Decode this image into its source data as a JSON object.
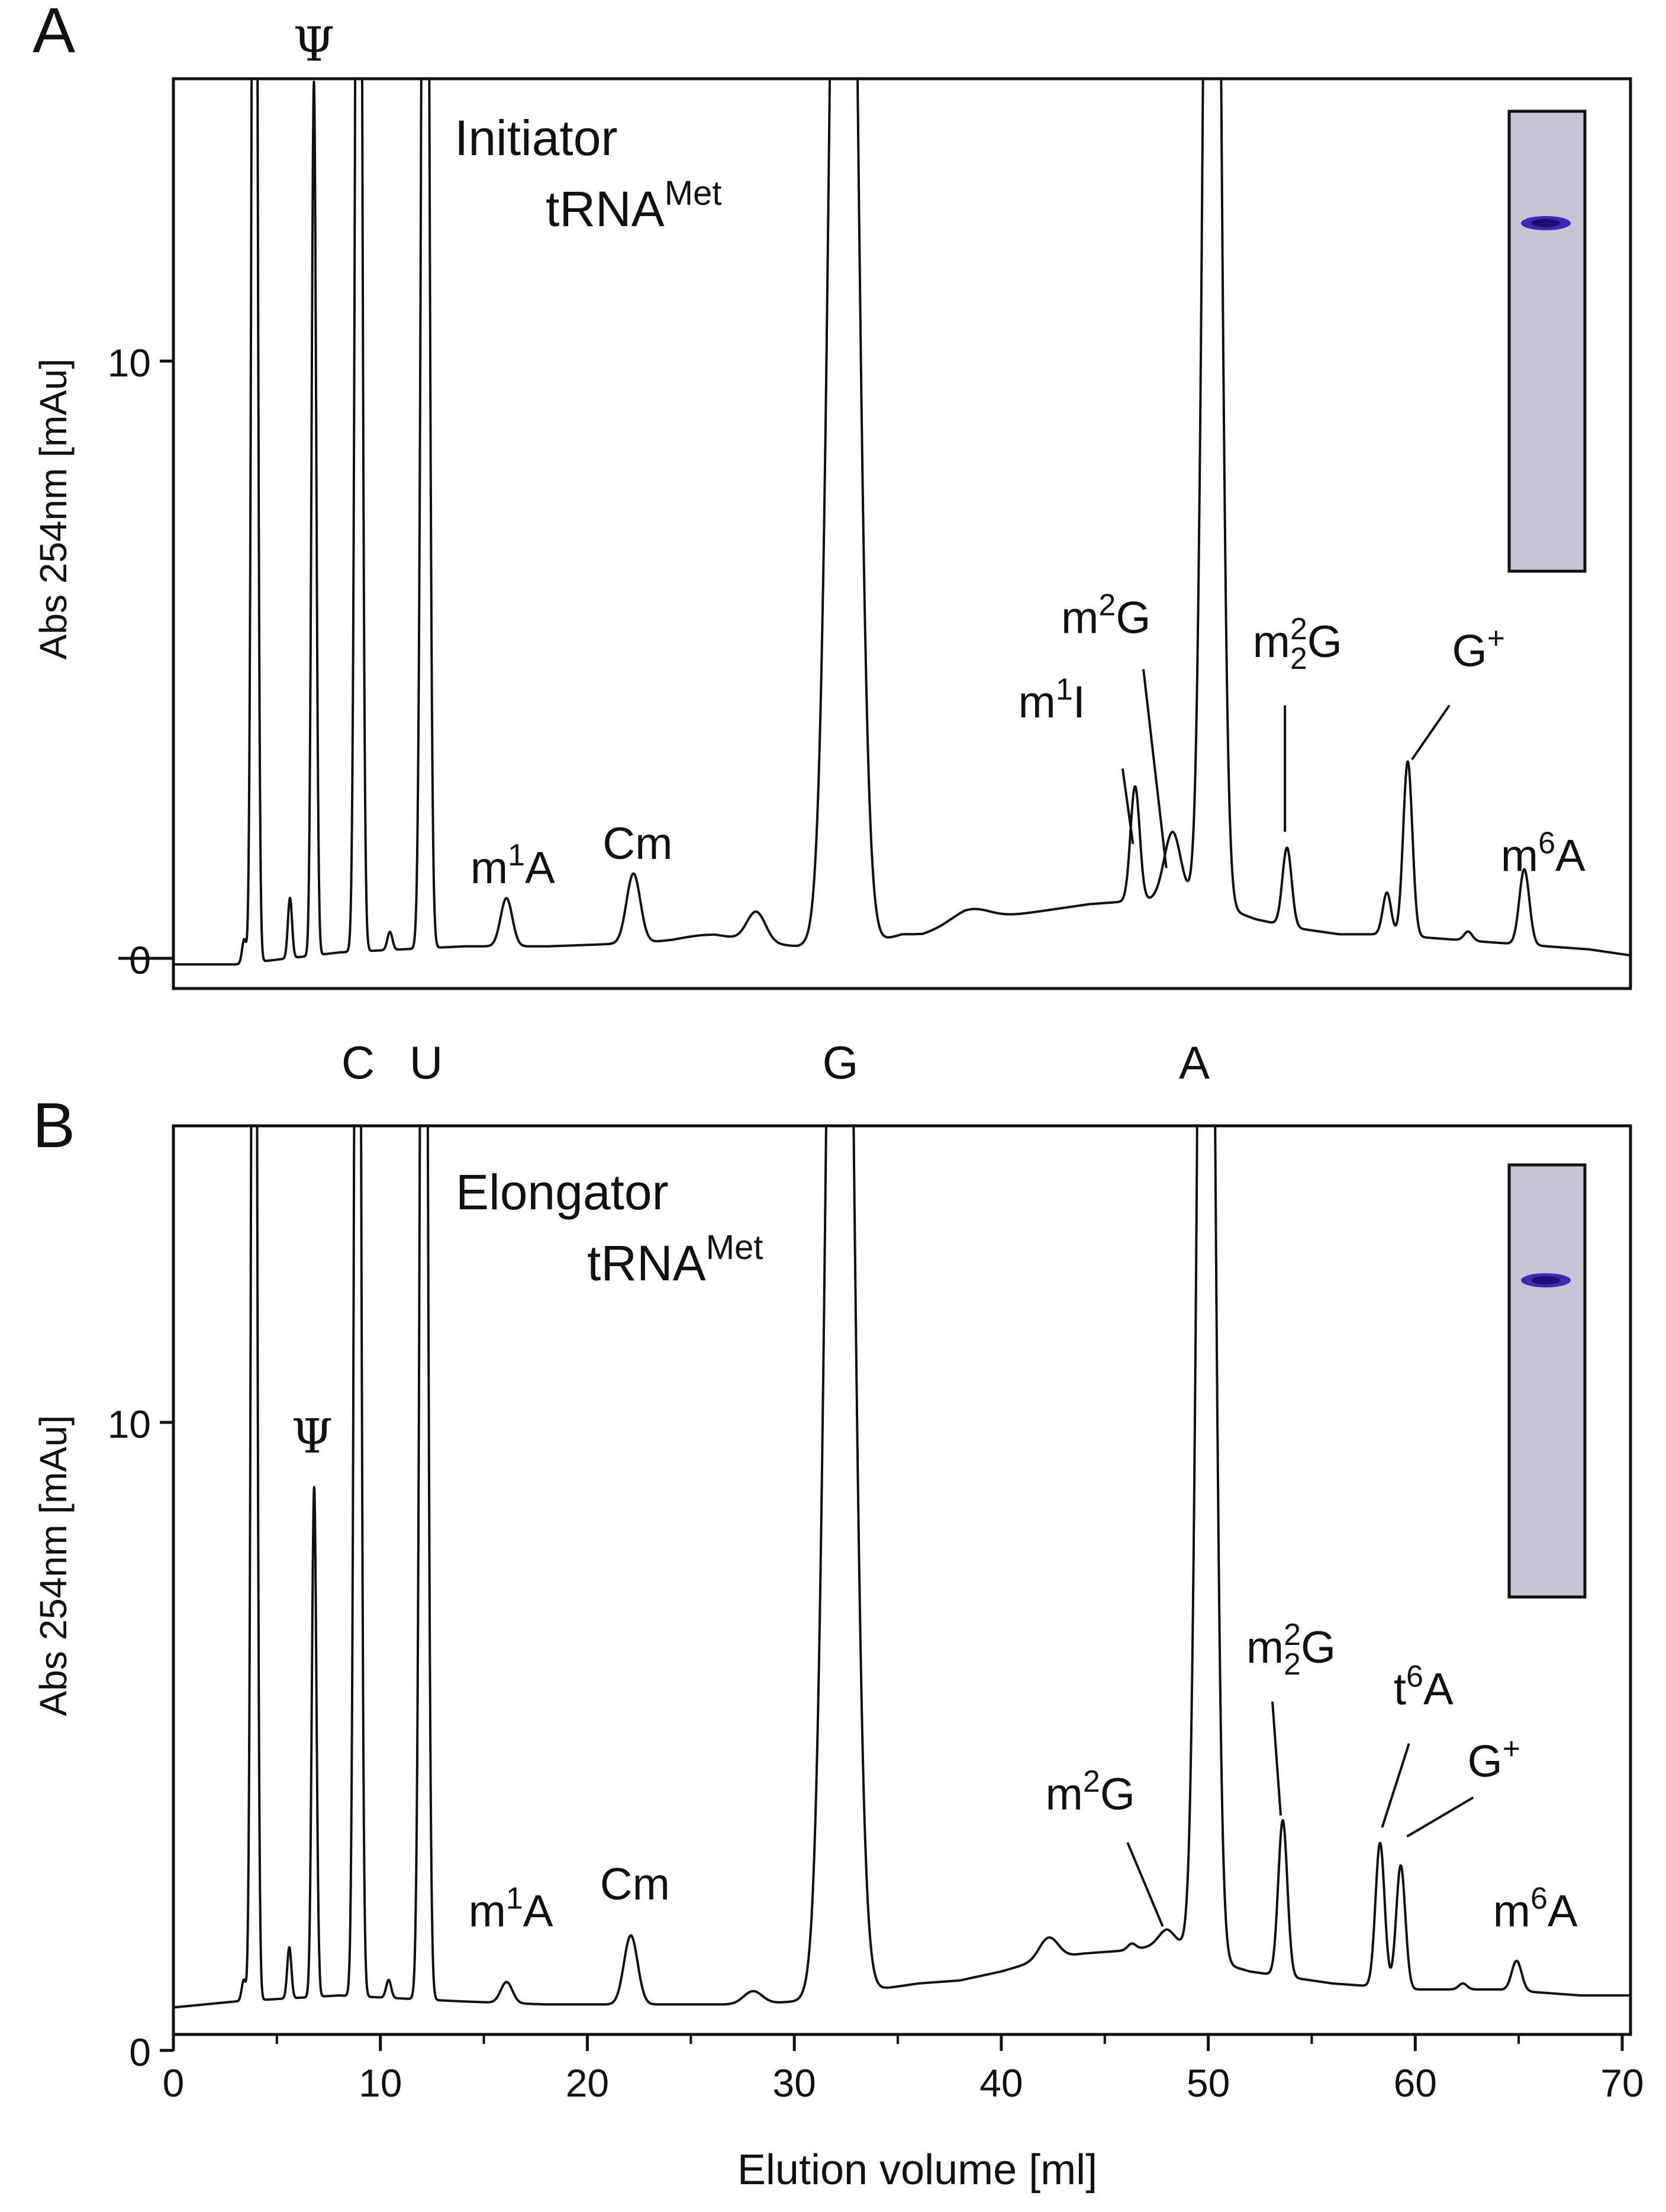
{
  "figure": {
    "x_axis_label": "Elution volume [ml]",
    "x_ticks": [
      "0",
      "10",
      "20",
      "30",
      "40",
      "50",
      "60",
      "70"
    ],
    "under_axis_labels": [
      "C",
      "U",
      "G",
      "A"
    ]
  },
  "chart_data": [
    {
      "type": "line",
      "panel_label": "A",
      "title_line1": "Initiator",
      "title_line2_base": "tRNA",
      "title_line2_sup": "Met",
      "ylabel": "Abs 254nm [mAu]",
      "y_ticks": [
        "0",
        "10"
      ],
      "xlim": [
        0,
        70
      ],
      "ylim": [
        -0.4,
        14.7
      ],
      "baseline": {
        "x": [
          0,
          3,
          8,
          14,
          18,
          22,
          24,
          26,
          28,
          30,
          34,
          35,
          36,
          38,
          40,
          42,
          44,
          46,
          48,
          50,
          52,
          54,
          56,
          58,
          60,
          62,
          64,
          66,
          68,
          70
        ],
        "y": [
          0.0,
          0.0,
          0.2,
          0.3,
          0.3,
          0.35,
          0.35,
          0.4,
          0.35,
          0.3,
          0.4,
          0.5,
          0.5,
          0.7,
          0.8,
          0.9,
          1.0,
          1.05,
          1.1,
          1.0,
          0.75,
          0.6,
          0.5,
          0.5,
          0.45,
          0.4,
          0.35,
          0.3,
          0.25,
          0.15
        ]
      },
      "peaks": [
        {
          "x": 3.4,
          "h": 0.4,
          "w": 0.1
        },
        {
          "x": 3.9,
          "h": 30,
          "w": 0.12
        },
        {
          "x": 5.6,
          "h": 1.0,
          "w": 0.1
        },
        {
          "x": 6.75,
          "h": 14.5,
          "w": 0.11
        },
        {
          "x": 8.9,
          "h": 30,
          "w": 0.14
        },
        {
          "x": 10.4,
          "h": 0.3,
          "w": 0.12
        },
        {
          "x": 12.1,
          "h": 30,
          "w": 0.16
        },
        {
          "x": 16.0,
          "h": 0.8,
          "w": 0.28
        },
        {
          "x": 22.1,
          "h": 1.15,
          "w": 0.33
        },
        {
          "x": 25.5,
          "h": 0.1,
          "w": 1.5
        },
        {
          "x": 28.0,
          "h": 0.5,
          "w": 0.45
        },
        {
          "x": 32.2,
          "h": 30,
          "w": 0.55
        },
        {
          "x": 38.3,
          "h": 0.2,
          "w": 0.9
        },
        {
          "x": 46.2,
          "h": 1.9,
          "w": 0.22
        },
        {
          "x": 48.0,
          "h": 1.1,
          "w": 0.4
        },
        {
          "x": 49.9,
          "h": 30,
          "w": 0.35
        },
        {
          "x": 53.5,
          "h": 1.3,
          "w": 0.22
        },
        {
          "x": 58.3,
          "h": 0.7,
          "w": 0.2
        },
        {
          "x": 59.3,
          "h": 2.9,
          "w": 0.22
        },
        {
          "x": 62.2,
          "h": 0.15,
          "w": 0.2
        },
        {
          "x": 64.9,
          "h": 1.25,
          "w": 0.24
        }
      ],
      "annotations": [
        {
          "kind": "serif",
          "text": "Ψ",
          "x": 6.75,
          "y": 15.0
        },
        {
          "kind": "sup",
          "pre": "m",
          "sup": "1",
          "post": "A",
          "x": 16.3,
          "y": 1.35
        },
        {
          "kind": "plain",
          "text": "Cm",
          "x": 22.3,
          "y": 1.75
        },
        {
          "kind": "sup",
          "pre": "m",
          "sup": "1",
          "post": "I",
          "x": 42.2,
          "y": 4.1
        },
        {
          "kind": "sup",
          "pre": "m",
          "sup": "2",
          "post": "G",
          "x": 44.8,
          "y": 5.5
        },
        {
          "kind": "subsup",
          "pre": "m",
          "sup": "2",
          "sub": "2",
          "post": "G",
          "x": 54.0,
          "y": 5.1
        },
        {
          "kind": "sup",
          "pre": "G",
          "sup": "+",
          "post": "",
          "x": 62.7,
          "y": 4.95
        },
        {
          "kind": "sup",
          "pre": "m",
          "sup": "6",
          "post": "A",
          "x": 65.8,
          "y": 1.55
        }
      ],
      "leader_lines": [
        {
          "x1": 45.6,
          "y1": 3.25,
          "x2": 46.1,
          "y2": 2.0
        },
        {
          "x1": 46.6,
          "y1": 4.9,
          "x2": 47.7,
          "y2": 1.6
        },
        {
          "x1": 53.4,
          "y1": 4.3,
          "x2": 53.4,
          "y2": 2.2
        },
        {
          "x1": 61.3,
          "y1": 4.3,
          "x2": 59.5,
          "y2": 3.4
        }
      ]
    },
    {
      "type": "line",
      "panel_label": "B",
      "title_line1": "Elongator",
      "title_line2_base": "tRNA",
      "title_line2_sup": "Met",
      "ylabel": "Abs 254nm [mAu]",
      "y_ticks": [
        "0",
        "10"
      ],
      "xlim": [
        0,
        70.4
      ],
      "ylim": [
        -0.35,
        14.8
      ],
      "baseline": {
        "x": [
          0,
          3,
          8,
          14,
          18,
          22,
          26,
          28,
          30,
          34,
          36,
          38,
          40,
          42,
          44,
          46,
          47,
          48,
          49,
          50,
          52,
          54,
          56,
          58,
          60,
          62,
          64,
          66,
          68,
          70
        ],
        "y": [
          0.1,
          0.2,
          0.3,
          0.2,
          0.15,
          0.15,
          0.15,
          0.15,
          0.2,
          0.4,
          0.5,
          0.55,
          0.7,
          0.9,
          1.0,
          1.05,
          1.1,
          1.15,
          1.1,
          0.9,
          0.7,
          0.6,
          0.5,
          0.45,
          0.4,
          0.4,
          0.4,
          0.35,
          0.3,
          0.3
        ]
      },
      "peaks": [
        {
          "x": 3.4,
          "h": 0.35,
          "w": 0.1
        },
        {
          "x": 3.9,
          "h": 30,
          "w": 0.12
        },
        {
          "x": 5.6,
          "h": 0.85,
          "w": 0.1
        },
        {
          "x": 6.8,
          "h": 8.5,
          "w": 0.11
        },
        {
          "x": 8.9,
          "h": 30,
          "w": 0.14
        },
        {
          "x": 10.4,
          "h": 0.3,
          "w": 0.12
        },
        {
          "x": 12.1,
          "h": 30,
          "w": 0.16
        },
        {
          "x": 16.1,
          "h": 0.35,
          "w": 0.28
        },
        {
          "x": 22.1,
          "h": 1.15,
          "w": 0.33
        },
        {
          "x": 28.0,
          "h": 0.22,
          "w": 0.45
        },
        {
          "x": 32.2,
          "h": 30,
          "w": 0.55
        },
        {
          "x": 42.3,
          "h": 0.35,
          "w": 0.45
        },
        {
          "x": 46.3,
          "h": 0.1,
          "w": 0.2
        },
        {
          "x": 48.0,
          "h": 0.25,
          "w": 0.4
        },
        {
          "x": 49.9,
          "h": 30,
          "w": 0.35
        },
        {
          "x": 53.6,
          "h": 2.6,
          "w": 0.22
        },
        {
          "x": 58.3,
          "h": 2.4,
          "w": 0.22
        },
        {
          "x": 59.3,
          "h": 2.05,
          "w": 0.22
        },
        {
          "x": 62.3,
          "h": 0.1,
          "w": 0.2
        },
        {
          "x": 64.9,
          "h": 0.5,
          "w": 0.24
        }
      ],
      "annotations": [
        {
          "kind": "serif",
          "text": "Ψ",
          "x": 6.7,
          "y": 9.35
        },
        {
          "kind": "sup",
          "pre": "m",
          "sup": "1",
          "post": "A",
          "x": 16.3,
          "y": 1.45
        },
        {
          "kind": "plain",
          "text": "Cm",
          "x": 22.3,
          "y": 1.9
        },
        {
          "kind": "sup",
          "pre": "m",
          "sup": "2",
          "post": "G",
          "x": 44.3,
          "y": 3.4
        },
        {
          "kind": "subsup",
          "pre": "m",
          "sup": "2",
          "sub": "2",
          "post": "G",
          "x": 54.0,
          "y": 5.85
        },
        {
          "kind": "sup",
          "pre": "t",
          "sup": "6",
          "post": "A",
          "x": 60.4,
          "y": 5.15
        },
        {
          "kind": "sup",
          "pre": "G",
          "sup": "+",
          "post": "",
          "x": 63.8,
          "y": 3.95
        },
        {
          "kind": "sup",
          "pre": "m",
          "sup": "6",
          "post": "A",
          "x": 65.8,
          "y": 1.45
        }
      ],
      "leader_lines": [
        {
          "x1": 46.1,
          "y1": 2.85,
          "x2": 47.8,
          "y2": 1.45
        },
        {
          "x1": 53.1,
          "y1": 5.2,
          "x2": 53.5,
          "y2": 3.3
        },
        {
          "x1": 59.7,
          "y1": 4.5,
          "x2": 58.4,
          "y2": 3.1
        },
        {
          "x1": 62.8,
          "y1": 3.6,
          "x2": 59.6,
          "y2": 2.95
        }
      ]
    }
  ]
}
